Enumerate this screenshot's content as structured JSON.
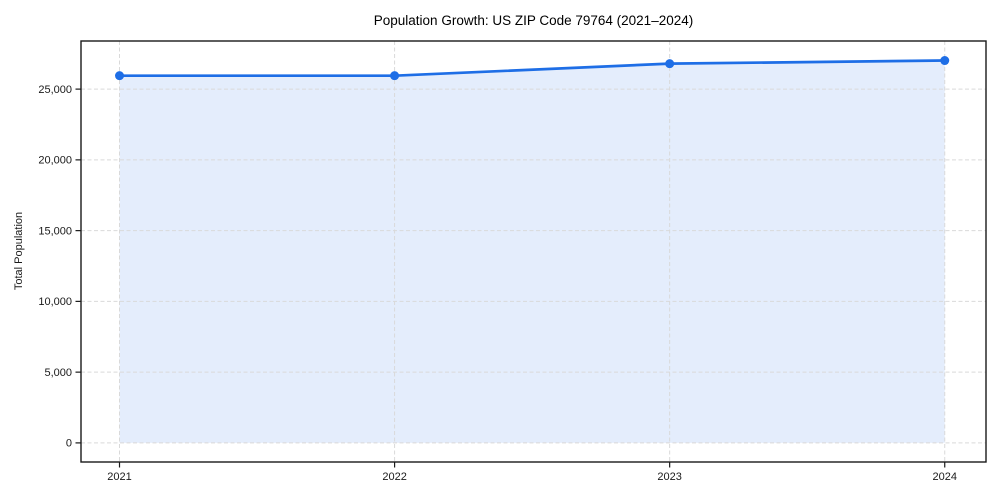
{
  "title": "Population Growth: US ZIP Code 79764 (2021–2024)",
  "chart_data": {
    "type": "line",
    "title": "Population Growth: US ZIP Code 79764 (2021–2024)",
    "xlabel": "",
    "ylabel": "Total Population",
    "x": [
      2021,
      2022,
      2023,
      2024
    ],
    "x_tick_labels": [
      "2021",
      "2022",
      "2023",
      "2024"
    ],
    "series": [
      {
        "name": "Total Population",
        "values": [
          25950,
          25950,
          26800,
          27020
        ]
      }
    ],
    "yticks": [
      0,
      5000,
      10000,
      15000,
      20000,
      25000
    ],
    "ytick_labels": [
      "0",
      "5,000",
      "10,000",
      "15,000",
      "20,000",
      "25,000"
    ],
    "ylim": [
      -1350,
      28400
    ],
    "xlim": [
      2020.86,
      2024.15
    ],
    "grid": true,
    "grid_style": "dashed",
    "legend": "none",
    "area_fill": true,
    "marker": "circle",
    "colors": {
      "line": "#1e6ee6",
      "fill": "#1e6ee6",
      "fill_opacity": 0.12,
      "grid": "#d9d9d9",
      "spine": "#1a1a1a",
      "text": "#1a1a1a",
      "background": "#ffffff"
    }
  }
}
